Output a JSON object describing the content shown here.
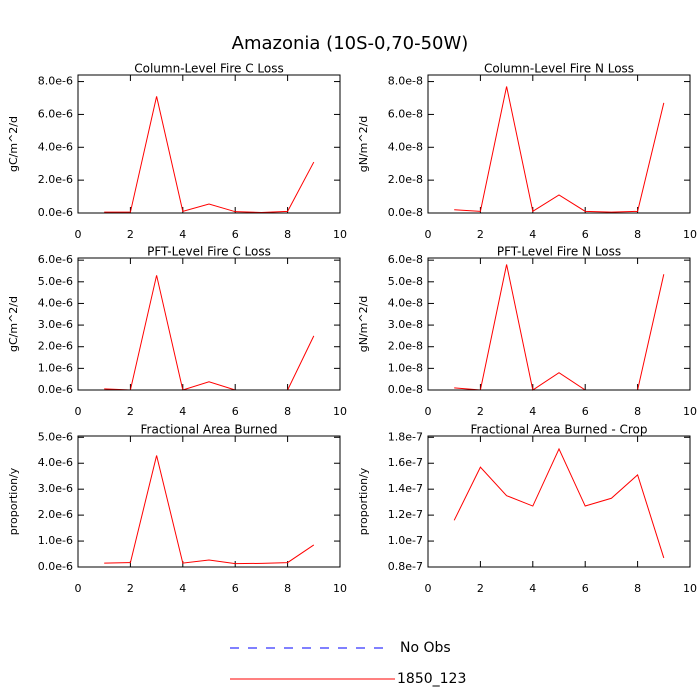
{
  "title": "Amazonia (10S-0,70-50W)",
  "chart_data": [
    {
      "type": "line",
      "title": "Column-Level Fire C Loss",
      "ylabel": "gC/m^2/d",
      "x": [
        1,
        2,
        3,
        4,
        5,
        6,
        7,
        8,
        9
      ],
      "xlim": [
        0,
        10
      ],
      "xticks": [
        0,
        2,
        4,
        6,
        8,
        10
      ],
      "ylim": [
        0,
        8.4e-06
      ],
      "yticks": [
        {
          "value": 0,
          "label": "0.0e-6"
        },
        {
          "value": 2e-06,
          "label": "2.0e-6"
        },
        {
          "value": 4e-06,
          "label": "4.0e-6"
        },
        {
          "value": 6e-06,
          "label": "6.0e-6"
        },
        {
          "value": 8e-06,
          "label": "8.0e-6"
        }
      ],
      "series": [
        {
          "name": "1850_123",
          "color": "#ff0000",
          "values": [
            5e-08,
            5e-08,
            7.1e-06,
            1e-07,
            5.5e-07,
            8e-08,
            3e-08,
            1e-07,
            3.1e-06
          ]
        }
      ]
    },
    {
      "type": "line",
      "title": "Column-Level Fire N Loss",
      "ylabel": "gN/m^2/d",
      "x": [
        1,
        2,
        3,
        4,
        5,
        6,
        7,
        8,
        9
      ],
      "xlim": [
        0,
        10
      ],
      "xticks": [
        0,
        2,
        4,
        6,
        8,
        10
      ],
      "ylim": [
        0,
        8.4e-08
      ],
      "yticks": [
        {
          "value": 0,
          "label": "0.0e-8"
        },
        {
          "value": 2e-08,
          "label": "2.0e-8"
        },
        {
          "value": 4e-08,
          "label": "4.0e-8"
        },
        {
          "value": 6e-08,
          "label": "6.0e-8"
        },
        {
          "value": 8e-08,
          "label": "8.0e-8"
        }
      ],
      "series": [
        {
          "name": "1850_123",
          "color": "#ff0000",
          "values": [
            2e-09,
            1e-09,
            7.7e-08,
            1e-09,
            1.1e-08,
            1e-09,
            5e-10,
            1e-09,
            6.7e-08
          ]
        }
      ]
    },
    {
      "type": "line",
      "title": "PFT-Level Fire C Loss",
      "ylabel": "gC/m^2/d",
      "x": [
        1,
        2,
        3,
        4,
        5,
        6,
        7,
        8,
        9
      ],
      "xlim": [
        0,
        10
      ],
      "xticks": [
        0,
        2,
        4,
        6,
        8,
        10
      ],
      "ylim": [
        0,
        6.1e-06
      ],
      "yticks": [
        {
          "value": 0,
          "label": "0.0e-6"
        },
        {
          "value": 1e-06,
          "label": "1.0e-6"
        },
        {
          "value": 2e-06,
          "label": "2.0e-6"
        },
        {
          "value": 3e-06,
          "label": "3.0e-6"
        },
        {
          "value": 4e-06,
          "label": "4.0e-6"
        },
        {
          "value": 5e-06,
          "label": "5.0e-6"
        },
        {
          "value": 6e-06,
          "label": "6.0e-6"
        }
      ],
      "series": [
        {
          "name": "1850_123",
          "color": "#ff0000",
          "values": [
            5e-08,
            0,
            5.3e-06,
            0,
            3.8e-07,
            0,
            0,
            0,
            2.5e-06
          ]
        }
      ]
    },
    {
      "type": "line",
      "title": "PFT-Level Fire N Loss",
      "ylabel": "gN/m^2/d",
      "x": [
        1,
        2,
        3,
        4,
        5,
        6,
        7,
        8,
        9
      ],
      "xlim": [
        0,
        10
      ],
      "xticks": [
        0,
        2,
        4,
        6,
        8,
        10
      ],
      "ylim": [
        0,
        6.1e-08
      ],
      "yticks": [
        {
          "value": 0,
          "label": "0.0e-8"
        },
        {
          "value": 1e-08,
          "label": "1.0e-8"
        },
        {
          "value": 2e-08,
          "label": "2.0e-8"
        },
        {
          "value": 3e-08,
          "label": "3.0e-8"
        },
        {
          "value": 4e-08,
          "label": "4.0e-8"
        },
        {
          "value": 5e-08,
          "label": "5.0e-8"
        },
        {
          "value": 6e-08,
          "label": "6.0e-8"
        }
      ],
      "series": [
        {
          "name": "1850_123",
          "color": "#ff0000",
          "values": [
            1e-09,
            0,
            5.8e-08,
            0,
            8e-09,
            0,
            0,
            0,
            5.35e-08
          ]
        }
      ]
    },
    {
      "type": "line",
      "title": "Fractional Area Burned",
      "ylabel": "proportion/y",
      "x": [
        1,
        2,
        3,
        4,
        5,
        6,
        7,
        8,
        9
      ],
      "xlim": [
        0,
        10
      ],
      "xticks": [
        0,
        2,
        4,
        6,
        8,
        10
      ],
      "ylim": [
        0,
        5.05e-06
      ],
      "yticks": [
        {
          "value": 0,
          "label": "0.0e-6"
        },
        {
          "value": 1e-06,
          "label": "1.0e-6"
        },
        {
          "value": 2e-06,
          "label": "2.0e-6"
        },
        {
          "value": 3e-06,
          "label": "3.0e-6"
        },
        {
          "value": 4e-06,
          "label": "4.0e-6"
        },
        {
          "value": 5e-06,
          "label": "5.0e-6"
        }
      ],
      "series": [
        {
          "name": "1850_123",
          "color": "#ff0000",
          "values": [
            1.5e-07,
            1.7e-07,
            4.3e-06,
            1.5e-07,
            2.7e-07,
            1.3e-07,
            1.4e-07,
            1.7e-07,
            8.5e-07
          ]
        }
      ]
    },
    {
      "type": "line",
      "title": "Fractional Area Burned - Crop",
      "ylabel": "proportion/y",
      "x": [
        1,
        2,
        3,
        4,
        5,
        6,
        7,
        8,
        9
      ],
      "xlim": [
        0,
        10
      ],
      "xticks": [
        0,
        2,
        4,
        6,
        8,
        10
      ],
      "ylim": [
        8e-08,
        1.81e-07
      ],
      "yticks": [
        {
          "value": 8e-08,
          "label": "0.8e-7"
        },
        {
          "value": 1e-07,
          "label": "1.0e-7"
        },
        {
          "value": 1.2e-07,
          "label": "1.2e-7"
        },
        {
          "value": 1.4e-07,
          "label": "1.4e-7"
        },
        {
          "value": 1.6e-07,
          "label": "1.6e-7"
        },
        {
          "value": 1.8e-07,
          "label": "1.8e-7"
        }
      ],
      "series": [
        {
          "name": "1850_123",
          "color": "#ff0000",
          "values": [
            1.16e-07,
            1.57e-07,
            1.35e-07,
            1.27e-07,
            1.71e-07,
            1.27e-07,
            1.33e-07,
            1.51e-07,
            8.7e-08
          ]
        }
      ]
    }
  ],
  "legend": [
    {
      "name": "No Obs",
      "color": "#0000ff",
      "dashed": true
    },
    {
      "name": "1850_123",
      "color": "#ff0000",
      "dashed": false
    }
  ]
}
